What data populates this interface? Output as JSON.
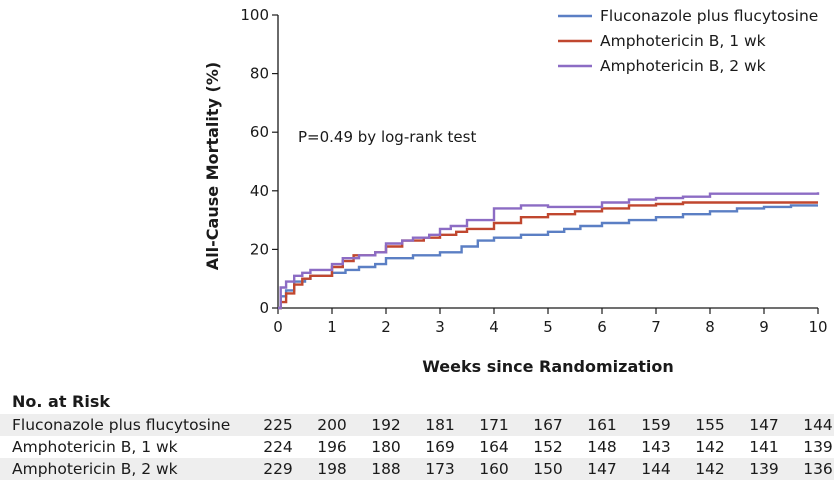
{
  "chart_data": {
    "type": "line",
    "step": true,
    "xlabel": "Weeks since Randomization",
    "ylabel": "All-Cause Mortality (%)",
    "xlim": [
      0,
      10
    ],
    "ylim": [
      0,
      100
    ],
    "x_ticks": [
      "0",
      "1",
      "2",
      "3",
      "4",
      "5",
      "6",
      "7",
      "8",
      "9",
      "10"
    ],
    "y_ticks": [
      "0",
      "20",
      "40",
      "60",
      "80",
      "100"
    ],
    "grid": false,
    "legend_position": "top-right",
    "annotation": "P=0.49 by log-rank test",
    "series": [
      {
        "name": "Fluconazole plus flucytosine",
        "color": "#5b7fc4",
        "points": [
          [
            0,
            0
          ],
          [
            0.05,
            4
          ],
          [
            0.15,
            6
          ],
          [
            0.3,
            9
          ],
          [
            0.5,
            10
          ],
          [
            0.6,
            11
          ],
          [
            1,
            12
          ],
          [
            1.25,
            13
          ],
          [
            1.5,
            14
          ],
          [
            1.8,
            15
          ],
          [
            2,
            17
          ],
          [
            2.5,
            18
          ],
          [
            3,
            19
          ],
          [
            3.4,
            21
          ],
          [
            3.7,
            23
          ],
          [
            4,
            24
          ],
          [
            4.5,
            25
          ],
          [
            5,
            26
          ],
          [
            5.3,
            27
          ],
          [
            5.6,
            28
          ],
          [
            6,
            29
          ],
          [
            6.5,
            30
          ],
          [
            7,
            31
          ],
          [
            7.5,
            32
          ],
          [
            8,
            33
          ],
          [
            8.5,
            34
          ],
          [
            9,
            34.5
          ],
          [
            9.5,
            35
          ],
          [
            10,
            35
          ]
        ]
      },
      {
        "name": "Amphotericin B, 1 wk",
        "color": "#c0472f",
        "points": [
          [
            0,
            0
          ],
          [
            0.05,
            2
          ],
          [
            0.15,
            5
          ],
          [
            0.3,
            8
          ],
          [
            0.45,
            10
          ],
          [
            0.6,
            11
          ],
          [
            1,
            14
          ],
          [
            1.2,
            16
          ],
          [
            1.4,
            18
          ],
          [
            1.8,
            19
          ],
          [
            2,
            21
          ],
          [
            2.3,
            23
          ],
          [
            2.7,
            24
          ],
          [
            3,
            25
          ],
          [
            3.3,
            26
          ],
          [
            3.5,
            27
          ],
          [
            4,
            29
          ],
          [
            4.5,
            31
          ],
          [
            5,
            32
          ],
          [
            5.5,
            33
          ],
          [
            6,
            34
          ],
          [
            6.5,
            35
          ],
          [
            7,
            35.5
          ],
          [
            7.5,
            36
          ],
          [
            8,
            36
          ],
          [
            9,
            36
          ],
          [
            10,
            36
          ]
        ]
      },
      {
        "name": "Amphotericin B, 2 wk",
        "color": "#8c6cc4",
        "points": [
          [
            0,
            0
          ],
          [
            0.05,
            7
          ],
          [
            0.15,
            9
          ],
          [
            0.3,
            11
          ],
          [
            0.45,
            12
          ],
          [
            0.6,
            13
          ],
          [
            1,
            15
          ],
          [
            1.2,
            17
          ],
          [
            1.5,
            18
          ],
          [
            1.8,
            19
          ],
          [
            2,
            22
          ],
          [
            2.3,
            23
          ],
          [
            2.5,
            24
          ],
          [
            2.8,
            25
          ],
          [
            3,
            27
          ],
          [
            3.2,
            28
          ],
          [
            3.5,
            30
          ],
          [
            4,
            34
          ],
          [
            4.5,
            35
          ],
          [
            5,
            34.5
          ],
          [
            6,
            36
          ],
          [
            6.5,
            37
          ],
          [
            7,
            37.5
          ],
          [
            7.5,
            38
          ],
          [
            8,
            39
          ],
          [
            9,
            39
          ],
          [
            10,
            39.5
          ]
        ]
      }
    ]
  },
  "risk_table": {
    "title": "No. at Risk",
    "rows": [
      {
        "label": "Fluconazole plus flucytosine",
        "values": [
          "225",
          "200",
          "192",
          "181",
          "171",
          "167",
          "161",
          "159",
          "155",
          "147",
          "144"
        ]
      },
      {
        "label": "Amphotericin B, 1 wk",
        "values": [
          "224",
          "196",
          "180",
          "169",
          "164",
          "152",
          "148",
          "143",
          "142",
          "141",
          "139"
        ]
      },
      {
        "label": "Amphotericin B, 2 wk",
        "values": [
          "229",
          "198",
          "188",
          "173",
          "160",
          "150",
          "147",
          "144",
          "142",
          "139",
          "136"
        ]
      }
    ]
  }
}
